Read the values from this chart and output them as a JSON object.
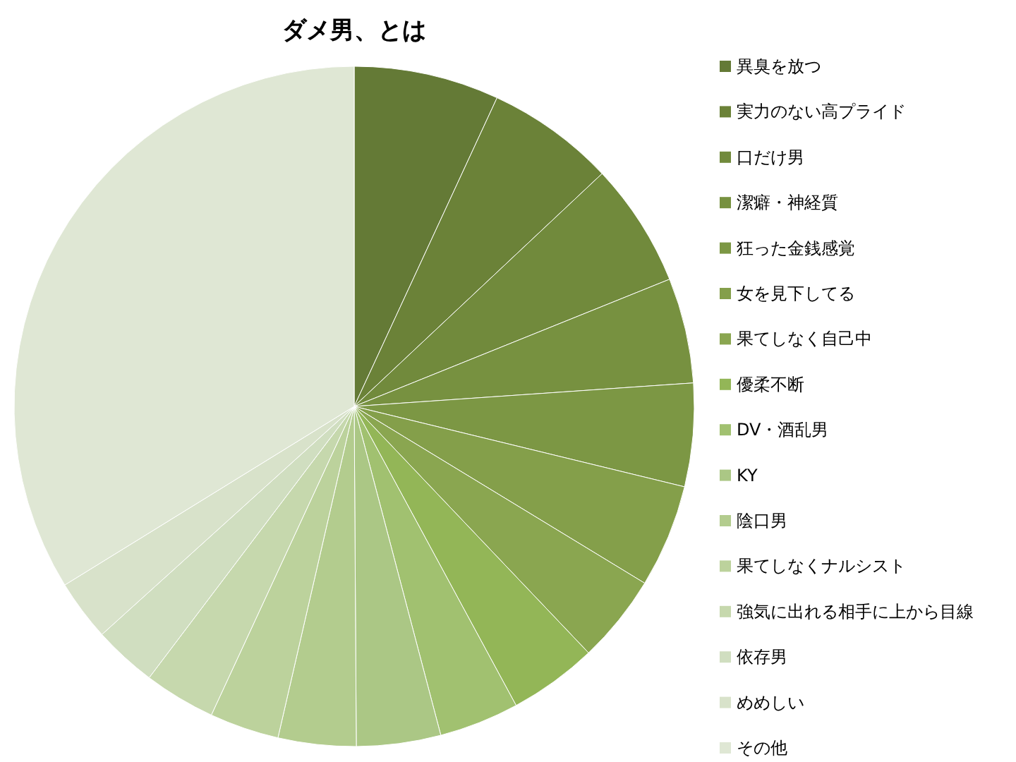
{
  "chart_data": {
    "type": "pie",
    "title": "ダメ男、とは",
    "categories": [
      "異臭を放つ",
      "実力のない高プライド",
      "口だけ男",
      "潔癖・神経質",
      "狂った金銭感覚",
      "女を見下してる",
      "果てしなく自己中",
      "優柔不断",
      "DV・酒乱男",
      "KY",
      "陰口男",
      "果てしなくナルシスト",
      "強気に出れる相手に上から目線",
      "依存男",
      "めめしい",
      "その他"
    ],
    "values": [
      6.9,
      6.1,
      5.9,
      5.0,
      4.9,
      4.9,
      4.2,
      4.2,
      3.8,
      4.0,
      3.7,
      3.3,
      3.4,
      3.0,
      2.9,
      33.8
    ],
    "colors": [
      "#647a36",
      "#6b8238",
      "#718a3c",
      "#779140",
      "#7c9744",
      "#849f4a",
      "#8aa650",
      "#93b657",
      "#a1c170",
      "#abc785",
      "#b3cc8e",
      "#bcd29c",
      "#c6d8ad",
      "#d0dec0",
      "#d8e2ca",
      "#dfe7d4"
    ],
    "legend": "right"
  }
}
